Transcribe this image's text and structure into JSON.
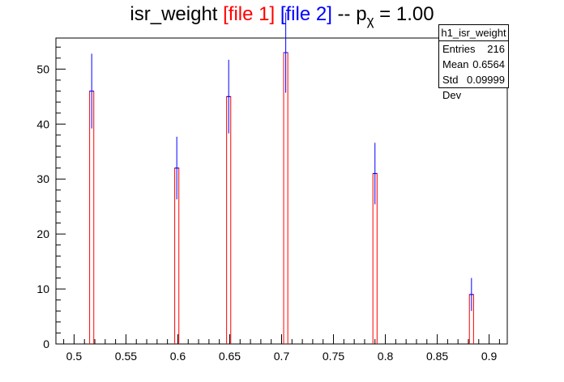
{
  "title": {
    "main": "isr_weight",
    "file1": "[file 1]",
    "file2": "[file 2]",
    "sep": "--",
    "p": "p",
    "p_sub": "χ",
    "eq": "= 1.00"
  },
  "stats": {
    "name": "h1_isr_weight",
    "rows": [
      {
        "label": "Entries",
        "value": "216"
      },
      {
        "label": "Mean",
        "value": "0.6564"
      },
      {
        "label": "Std Dev",
        "value": "0.09999"
      }
    ]
  },
  "colors": {
    "file1": "#ff0000",
    "file2": "#0000ff",
    "axis": "#000000"
  },
  "chart_data": {
    "type": "bar",
    "title": "isr_weight [file 1] [file 2] -- p_χ = 1.00",
    "xlim": [
      0.4825,
      0.9175
    ],
    "ylim": [
      0,
      55.65
    ],
    "bin_width": 0.004,
    "xticks": [
      0.5,
      0.55,
      0.6,
      0.65,
      0.7,
      0.75,
      0.8,
      0.85,
      0.9
    ],
    "xtick_labels": [
      "0.5",
      "0.55",
      "0.6",
      "0.65",
      "0.7",
      "0.75",
      "0.8",
      "0.85",
      "0.9"
    ],
    "yticks": [
      0,
      10,
      20,
      30,
      40,
      50
    ],
    "ytick_labels": [
      "0",
      "10",
      "20",
      "30",
      "40",
      "50"
    ],
    "series": [
      {
        "name": "[file 1]",
        "style": "histogram",
        "color": "#ff0000",
        "x": [
          0.517,
          0.599,
          0.649,
          0.704,
          0.79,
          0.883
        ],
        "values": [
          46,
          32,
          45,
          53,
          31,
          9
        ]
      },
      {
        "name": "[file 2]",
        "style": "errorbar",
        "color": "#0000ff",
        "x": [
          0.517,
          0.599,
          0.649,
          0.704,
          0.79,
          0.883
        ],
        "values": [
          46,
          32,
          45,
          53,
          31,
          9
        ],
        "errors": [
          6.8,
          5.7,
          6.7,
          7.3,
          5.6,
          3
        ]
      }
    ]
  }
}
